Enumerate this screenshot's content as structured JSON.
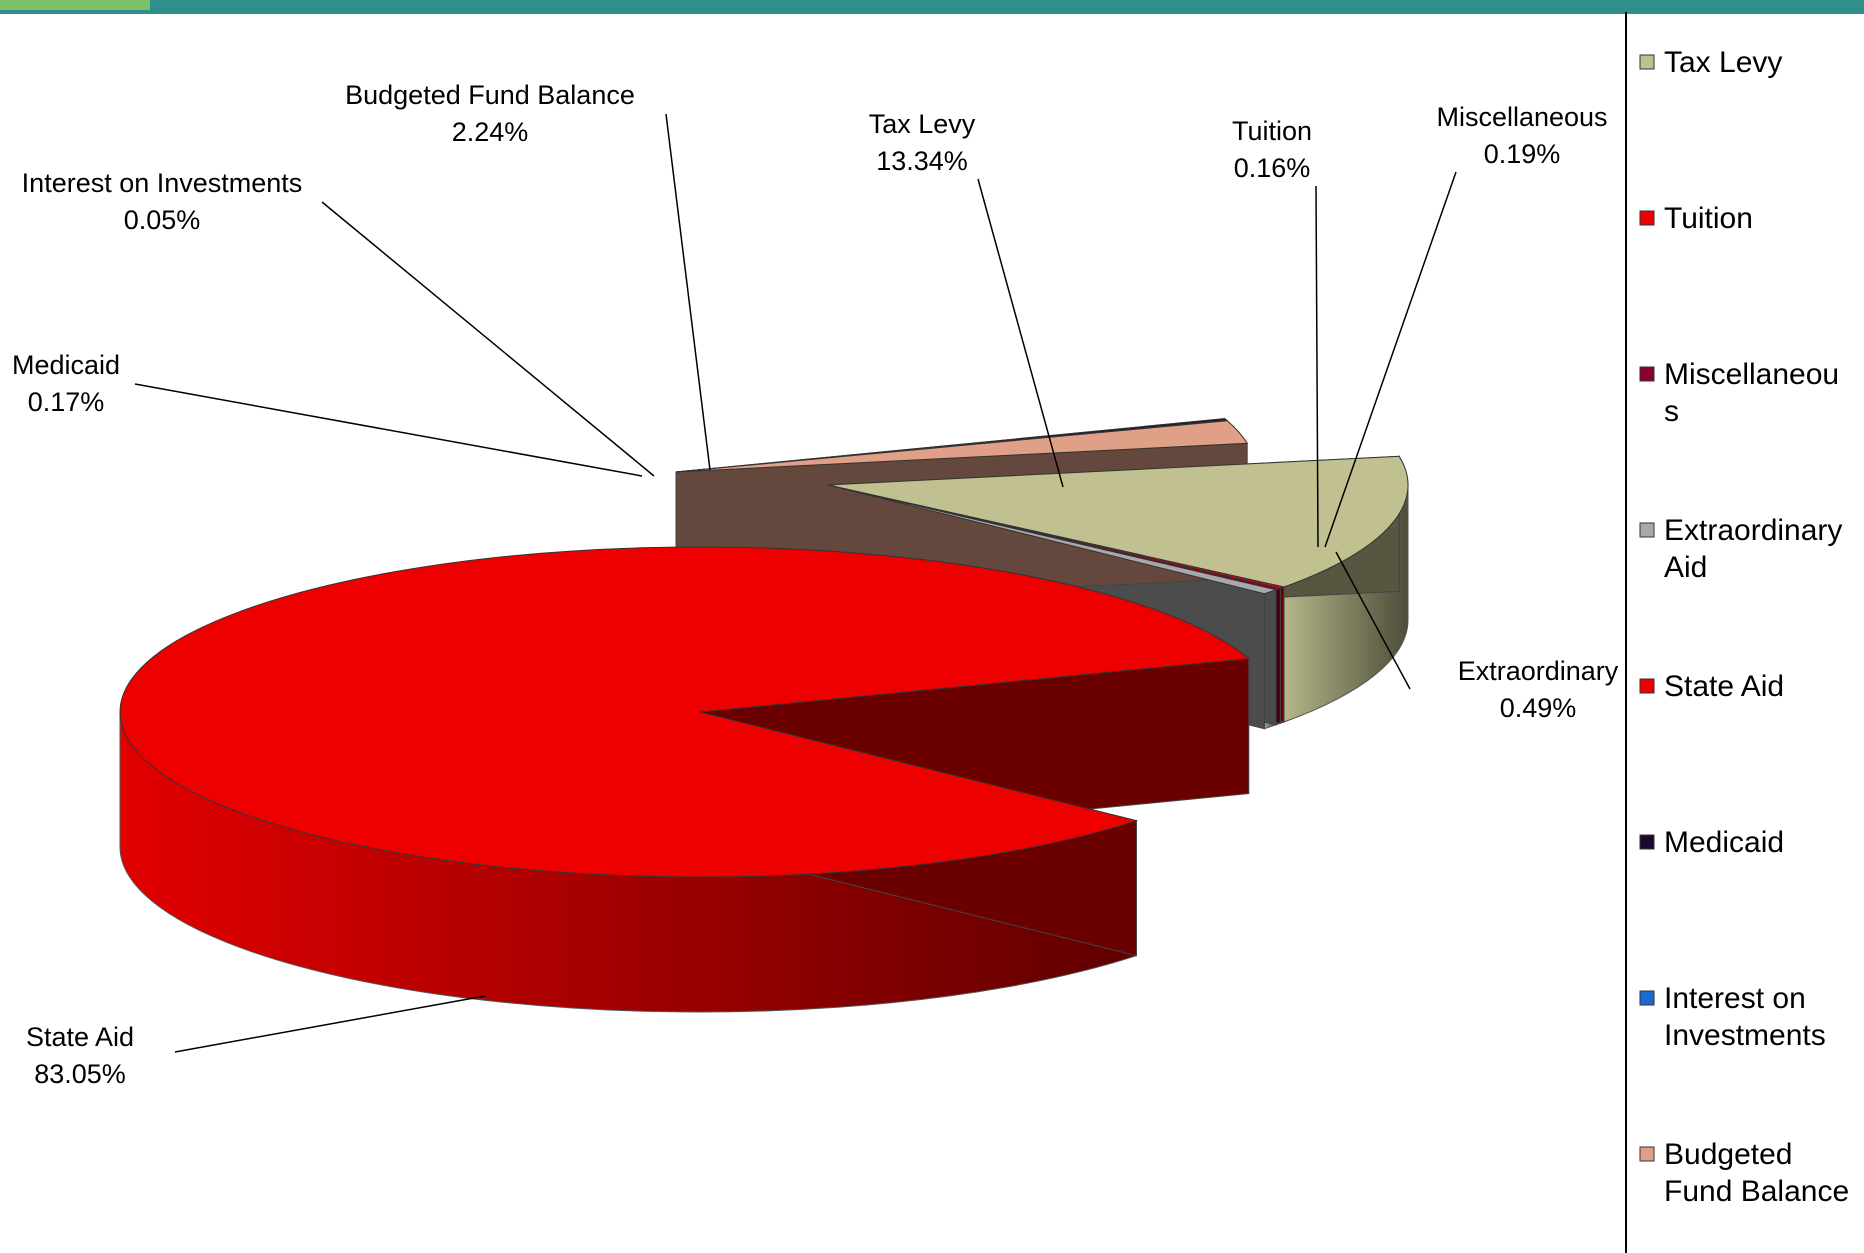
{
  "chart_data": {
    "type": "pie",
    "variant": "3d-exploded",
    "legend_position": "right",
    "slices": [
      {
        "name": "Tax Levy",
        "name_lines": [
          "Tax Levy"
        ],
        "value": 13.34,
        "label": "13.34%",
        "color": "#c0c090"
      },
      {
        "name": "Tuition",
        "name_lines": [
          "Tuition"
        ],
        "value": 0.16,
        "label": "0.16%",
        "color": "#ee0000"
      },
      {
        "name": "Miscellaneous",
        "name_lines": [
          "Miscellaneou",
          "s"
        ],
        "value": 0.19,
        "label": "0.19%",
        "color": "#8a0030"
      },
      {
        "name": "Extraordinary Aid",
        "name_lines": [
          "Extraordinary",
          "Aid"
        ],
        "value": 0.49,
        "label": "0.49%",
        "color": "#a8a8a8",
        "callout_name": "Extraordinary"
      },
      {
        "name": "State Aid",
        "name_lines": [
          "State Aid"
        ],
        "value": 83.05,
        "label": "83.05%",
        "color": "#ee0000"
      },
      {
        "name": "Medicaid",
        "name_lines": [
          "Medicaid"
        ],
        "value": 0.17,
        "label": "0.17%",
        "color": "#1c0a2c"
      },
      {
        "name": "Interest on Investments",
        "name_lines": [
          "Interest on",
          "Investments"
        ],
        "value": 0.05,
        "label": "0.05%",
        "color": "#1f6ad0"
      },
      {
        "name": "Budgeted Fund Balance",
        "name_lines": [
          "Budgeted",
          "Fund Balance"
        ],
        "value": 2.24,
        "label": "2.24%",
        "color": "#e0a088"
      }
    ]
  }
}
